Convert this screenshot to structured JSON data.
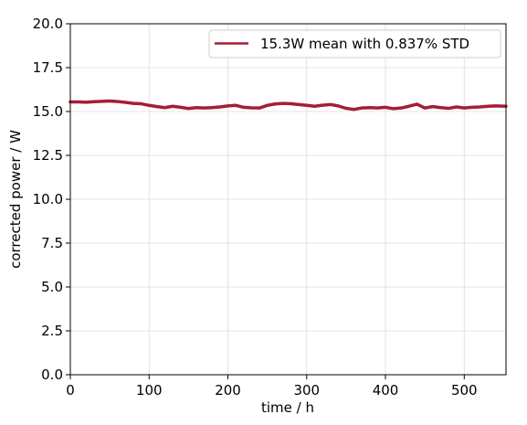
{
  "chart_data": {
    "type": "line",
    "title": "",
    "xlabel": "time / h",
    "ylabel": "corrected power / W",
    "xlim": [
      0,
      553
    ],
    "ylim": [
      0.0,
      20.0
    ],
    "x_ticks": [
      0,
      100,
      200,
      300,
      400,
      500
    ],
    "x_tick_labels": [
      "0",
      "100",
      "200",
      "300",
      "400",
      "500"
    ],
    "y_ticks": [
      0.0,
      2.5,
      5.0,
      7.5,
      10.0,
      12.5,
      15.0,
      17.5,
      20.0
    ],
    "y_tick_labels": [
      "0.0",
      "2.5",
      "5.0",
      "7.5",
      "10.0",
      "12.5",
      "15.0",
      "17.5",
      "20.0"
    ],
    "grid": true,
    "legend": {
      "placement": "top-right",
      "entries": [
        "15.3W mean with 0.837% STD"
      ]
    },
    "series": [
      {
        "name": "15.3W mean with 0.837% STD",
        "color": "#a31f34",
        "x": [
          0,
          10,
          20,
          30,
          40,
          50,
          60,
          70,
          80,
          90,
          100,
          110,
          120,
          130,
          140,
          150,
          160,
          170,
          180,
          190,
          200,
          210,
          220,
          230,
          240,
          250,
          260,
          270,
          280,
          290,
          300,
          310,
          320,
          330,
          340,
          350,
          360,
          370,
          380,
          390,
          400,
          410,
          420,
          430,
          440,
          450,
          460,
          470,
          480,
          490,
          500,
          510,
          520,
          530,
          540,
          553
        ],
        "values": [
          15.55,
          15.55,
          15.53,
          15.56,
          15.58,
          15.6,
          15.57,
          15.52,
          15.46,
          15.44,
          15.35,
          15.28,
          15.22,
          15.3,
          15.24,
          15.17,
          15.22,
          15.2,
          15.22,
          15.26,
          15.32,
          15.35,
          15.24,
          15.21,
          15.2,
          15.35,
          15.43,
          15.46,
          15.44,
          15.4,
          15.35,
          15.3,
          15.36,
          15.4,
          15.32,
          15.18,
          15.12,
          15.2,
          15.22,
          15.2,
          15.24,
          15.16,
          15.2,
          15.3,
          15.42,
          15.2,
          15.28,
          15.22,
          15.18,
          15.26,
          15.2,
          15.24,
          15.26,
          15.3,
          15.32,
          15.3
        ]
      }
    ]
  }
}
